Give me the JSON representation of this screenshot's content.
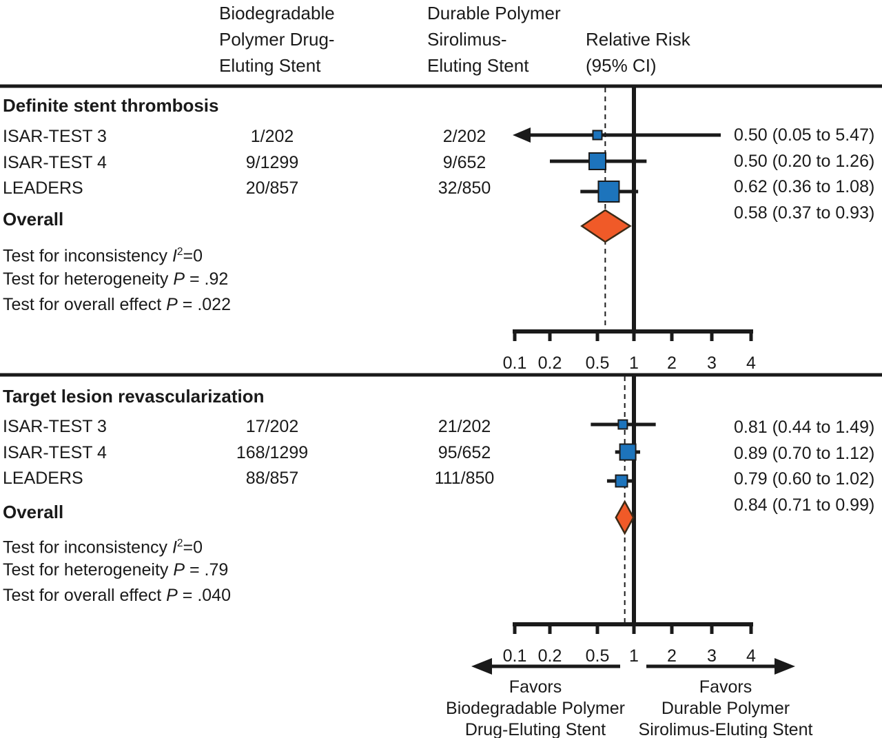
{
  "header": {
    "col1": [
      "Biodegradable",
      "Polymer Drug-",
      "Eluting Stent"
    ],
    "col2": [
      "Durable Polymer",
      "Sirolimus-",
      "Eluting Stent"
    ],
    "col3": [
      "Relative Risk",
      "(95% CI)"
    ]
  },
  "chart_data": {
    "type": "forest",
    "x_axis": {
      "scale": "log-like",
      "ticks": [
        0.1,
        0.2,
        0.5,
        1,
        2,
        3,
        4
      ],
      "tick_labels": [
        "0.1",
        "0.2",
        "0.5",
        "1",
        "2",
        "3",
        "4"
      ],
      "reference_line": 1
    },
    "sections": [
      {
        "title": "Definite stent thrombosis",
        "rows": [
          {
            "study": "ISAR-TEST 3",
            "bp_events": "1/202",
            "dp_events": "2/202",
            "rr": 0.5,
            "ci_low": 0.05,
            "ci_high": 5.47,
            "rr_label": "0.50 (0.05 to 5.47)",
            "marker_size": 13,
            "arrow_low": true
          },
          {
            "study": "ISAR-TEST 4",
            "bp_events": "9/1299",
            "dp_events": "9/652",
            "rr": 0.5,
            "ci_low": 0.2,
            "ci_high": 1.26,
            "rr_label": "0.50 (0.20 to 1.26)",
            "marker_size": 24,
            "arrow_low": false
          },
          {
            "study": "LEADERS",
            "bp_events": "20/857",
            "dp_events": "32/850",
            "rr": 0.62,
            "ci_low": 0.36,
            "ci_high": 1.08,
            "rr_label": "0.62 (0.36 to 1.08)",
            "marker_size": 30,
            "arrow_low": false
          }
        ],
        "overall": {
          "label": "Overall",
          "rr": 0.58,
          "ci_low": 0.37,
          "ci_high": 0.93,
          "rr_label": "0.58 (0.37 to 0.93)"
        },
        "tests": {
          "inconsistency": {
            "prefix": "Test for inconsistency ",
            "stat": "I",
            "power": "2",
            "suffix": "=0"
          },
          "heterogeneity": {
            "prefix": "Test for heterogeneity ",
            "stat": "P",
            "suffix": " = .92"
          },
          "overall_effect": {
            "prefix": "Test for overall effect ",
            "stat": "P",
            "suffix": " = .022"
          }
        }
      },
      {
        "title": "Target lesion revascularization",
        "rows": [
          {
            "study": "ISAR-TEST 3",
            "bp_events": "17/202",
            "dp_events": "21/202",
            "rr": 0.81,
            "ci_low": 0.44,
            "ci_high": 1.49,
            "rr_label": "0.81 (0.44 to 1.49)",
            "marker_size": 13,
            "arrow_low": false
          },
          {
            "study": "ISAR-TEST 4",
            "bp_events": "168/1299",
            "dp_events": "95/652",
            "rr": 0.89,
            "ci_low": 0.7,
            "ci_high": 1.12,
            "rr_label": "0.89 (0.70 to 1.12)",
            "marker_size": 23,
            "arrow_low": false
          },
          {
            "study": "LEADERS",
            "bp_events": "88/857",
            "dp_events": "111/850",
            "rr": 0.79,
            "ci_low": 0.6,
            "ci_high": 1.02,
            "rr_label": "0.79 (0.60 to 1.02)",
            "marker_size": 17,
            "arrow_low": false
          }
        ],
        "overall": {
          "label": "Overall",
          "rr": 0.84,
          "ci_low": 0.71,
          "ci_high": 0.99,
          "rr_label": "0.84 (0.71 to 0.99)"
        },
        "tests": {
          "inconsistency": {
            "prefix": "Test for inconsistency ",
            "stat": "I",
            "power": "2",
            "suffix": "=0"
          },
          "heterogeneity": {
            "prefix": "Test for heterogeneity ",
            "stat": "P",
            "suffix": " = .79"
          },
          "overall_effect": {
            "prefix": "Test for overall effect ",
            "stat": "P",
            "suffix": " = .040"
          }
        }
      }
    ],
    "footer": {
      "left_arrow_label": [
        "Favors",
        "Biodegradable Polymer",
        "Drug-Eluting Stent"
      ],
      "right_arrow_label": [
        "Favors",
        "Durable Polymer",
        "Sirolimus-Eluting Stent"
      ]
    },
    "colors": {
      "square_fill": "#1d74bc",
      "diamond_fill": "#f05a28",
      "ink": "#1a1a1a"
    }
  }
}
